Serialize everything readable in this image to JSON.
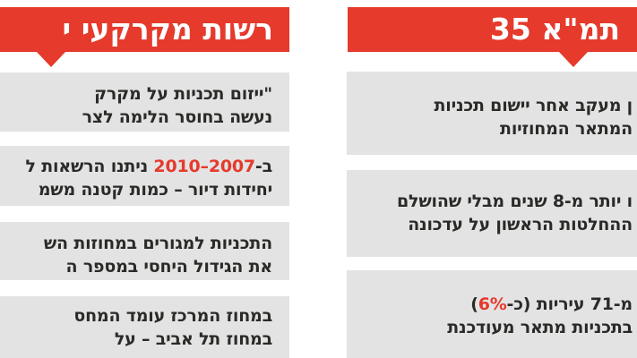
{
  "colors": {
    "accent_red": "#e53a2c",
    "box_gray": "#e3e3e4",
    "text_dark": "#2a2a27",
    "title_white": "#ffffff"
  },
  "columns": [
    {
      "id": "israel-land-authority",
      "title": "רשות מקרקעי י",
      "boxes": [
        {
          "lines": [
            {
              "segments": [
                {
                  "t": "\"ייזום תכניות על מקרק"
                }
              ]
            },
            {
              "segments": [
                {
                  "t": "נעשה בחוסר הלימה לצר"
                }
              ]
            }
          ]
        },
        {
          "lines": [
            {
              "segments": [
                {
                  "t": "ב-"
                },
                {
                  "t": "2007–2010",
                  "red": true
                },
                {
                  "t": " ניתנו הרשאות ל"
                }
              ]
            },
            {
              "segments": [
                {
                  "t": "יחידות דיור – כמות קטנה משמ"
                }
              ]
            }
          ]
        },
        {
          "lines": [
            {
              "segments": [
                {
                  "t": "התכניות למגורים במחוזות הש"
                }
              ]
            },
            {
              "segments": [
                {
                  "t": "את הגידול היחסי במספר ה"
                }
              ]
            }
          ]
        },
        {
          "lines": [
            {
              "segments": [
                {
                  "t": "במחוז המרכז עומד המחס"
                }
              ]
            },
            {
              "segments": [
                {
                  "t": "במחוז תל אביב – על"
                }
              ]
            }
          ]
        }
      ]
    },
    {
      "id": "tama-35",
      "title": "תמ\"א 35",
      "boxes": [
        {
          "lines": [
            {
              "segments": [
                {
                  "t": "ן מעקב אחר יישום תכניות"
                }
              ]
            },
            {
              "segments": [
                {
                  "t": "המתאר המחוזיות"
                }
              ]
            }
          ]
        },
        {
          "lines": [
            {
              "segments": [
                {
                  "t": "ו יותר מ-8 שנים מבלי שהושלם"
                }
              ]
            },
            {
              "segments": [
                {
                  "t": "ההחלטות הראשון על עדכונה"
                }
              ]
            }
          ]
        },
        {
          "lines": [
            {
              "segments": [
                {
                  "t": "מ-71 עיריות (כ-"
                },
                {
                  "t": "6%",
                  "red": true
                },
                {
                  "t": ")"
                }
              ]
            },
            {
              "segments": [
                {
                  "t": "בתכניות מתאר מעודכנת"
                }
              ]
            }
          ]
        }
      ]
    }
  ]
}
